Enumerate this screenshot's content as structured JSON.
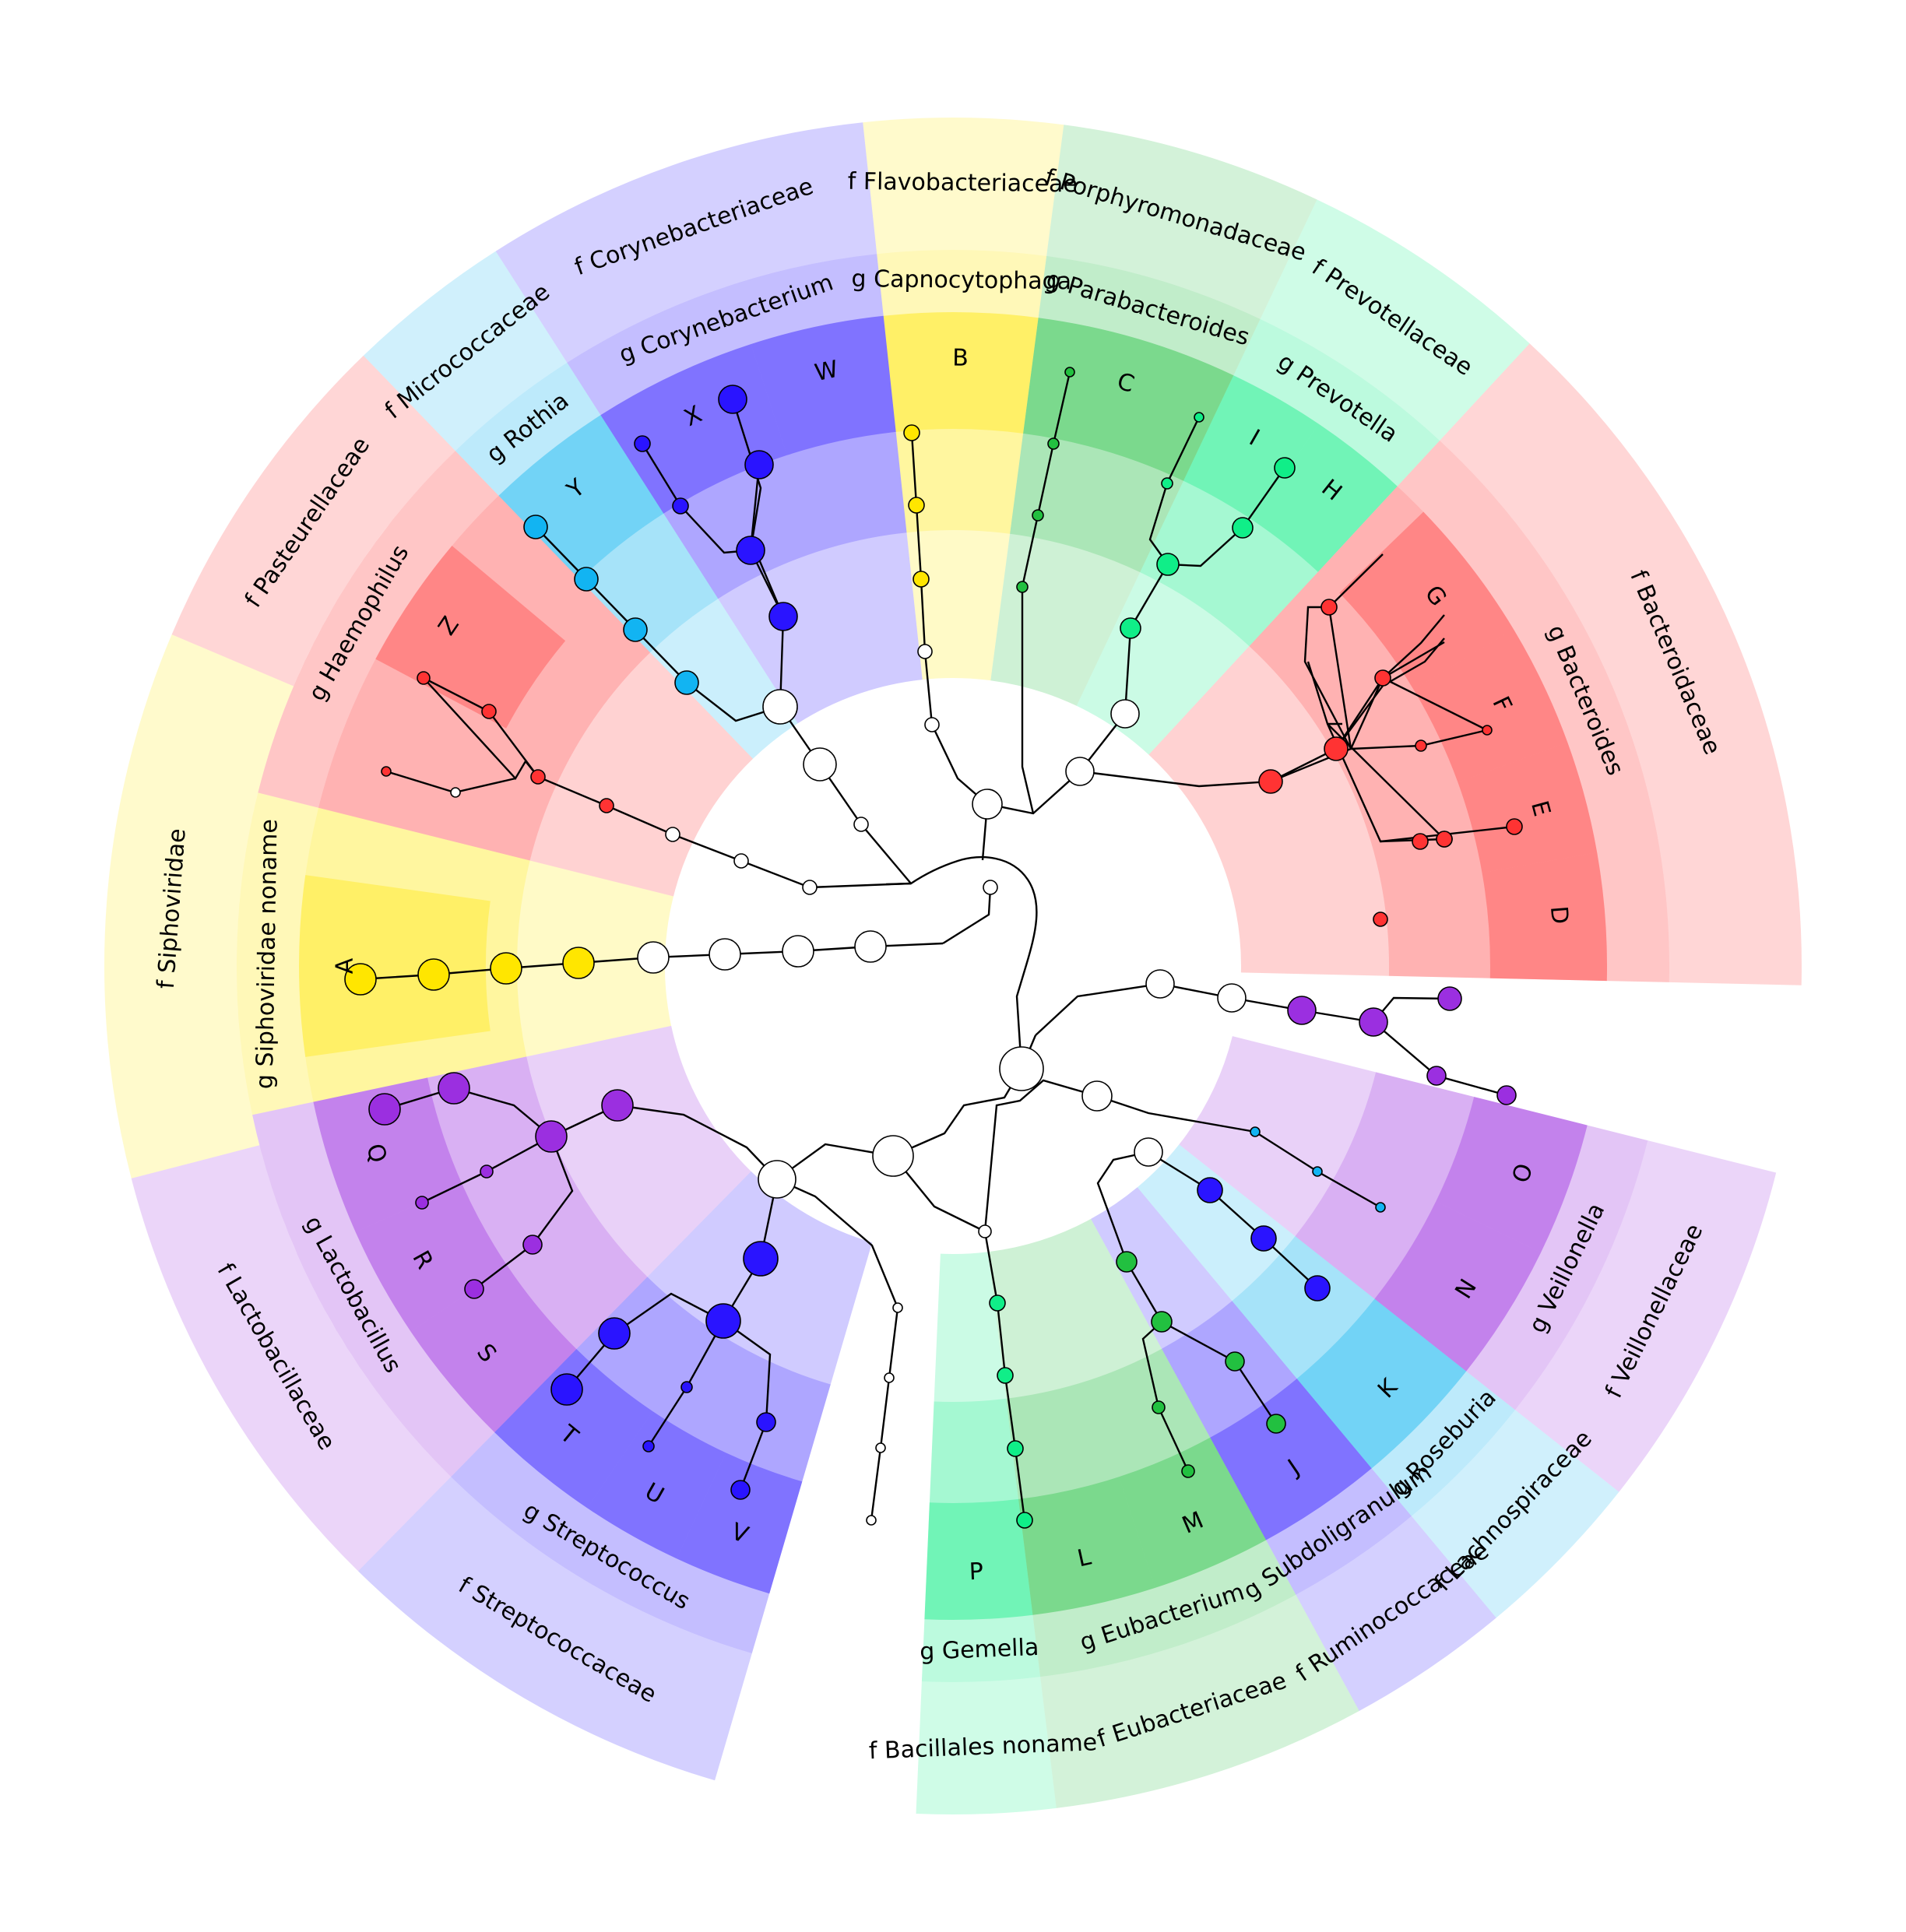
{
  "colors": {
    "red": "#ff3333",
    "yellow": "#ffe600",
    "purple": "#9b2fe0",
    "blue": "#2a14ff",
    "cyan": "#12b4f2",
    "green": "#22c040",
    "mint": "#10ee88",
    "internal": "#ffffff"
  },
  "families": [
    {
      "id": "bacteroidaceae",
      "label": "f  Bacteroidaceae",
      "color": "red"
    },
    {
      "id": "prevotellaceae",
      "label": "f  Prevotellaceae",
      "color": "mint"
    },
    {
      "id": "porphyromonadaceae",
      "label": "f  Porphyromonadaceae",
      "color": "green"
    },
    {
      "id": "flavobacteriaceae",
      "label": "f  Flavobacteriaceae",
      "color": "yellow"
    },
    {
      "id": "corynebacteriaceae",
      "label": "f  Corynebacteriaceae",
      "color": "blue"
    },
    {
      "id": "micrococcaceae",
      "label": "f  Micrococcaceae",
      "color": "cyan"
    },
    {
      "id": "pasteurellaceae",
      "label": "f  Pasteurellaceae",
      "color": "red"
    },
    {
      "id": "siphoviridae",
      "label": "f  Siphoviridae",
      "color": "yellow"
    },
    {
      "id": "lactobacillaceae",
      "label": "f  Lactobacillaceae",
      "color": "purple"
    },
    {
      "id": "streptococcaceae",
      "label": "f  Streptococcaceae",
      "color": "blue"
    },
    {
      "id": "bacillales",
      "label": "f  Bacillales noname",
      "color": "mint"
    },
    {
      "id": "eubacteriaceae",
      "label": "f  Eubacteriaceae",
      "color": "green"
    },
    {
      "id": "ruminococcaceae",
      "label": "f  Ruminococcaceae",
      "color": "blue"
    },
    {
      "id": "lachnospiraceae",
      "label": "f  Lachnospiraceae",
      "color": "cyan"
    },
    {
      "id": "veillonellaceae",
      "label": "f  Veillonellaceae",
      "color": "purple"
    }
  ],
  "genera": [
    {
      "id": "bacteroides",
      "label": "g  Bacteroides",
      "color": "red"
    },
    {
      "id": "prevotella",
      "label": "g  Prevotella",
      "color": "mint"
    },
    {
      "id": "parabacteroides",
      "label": "g  Parabacteroides",
      "color": "green"
    },
    {
      "id": "capnocytophaga",
      "label": "g  Capnocytophaga",
      "color": "yellow"
    },
    {
      "id": "corynebacterium",
      "label": "g  Corynebacterium",
      "color": "blue"
    },
    {
      "id": "rothia",
      "label": "g  Rothia",
      "color": "cyan"
    },
    {
      "id": "haemophilus",
      "label": "g  Haemophilus",
      "color": "red"
    },
    {
      "id": "siphoviridae_noname",
      "label": "g  Siphoviridae noname",
      "color": "yellow"
    },
    {
      "id": "lactobacillus",
      "label": "g  Lactobacillus",
      "color": "purple"
    },
    {
      "id": "streptococcus",
      "label": "g  Streptococcus",
      "color": "blue"
    },
    {
      "id": "gemella",
      "label": "g  Gemella",
      "color": "mint"
    },
    {
      "id": "eubacterium",
      "label": "g  Eubacterium",
      "color": "green"
    },
    {
      "id": "subdoligranulum",
      "label": "g  Subdoligranulum",
      "color": "blue"
    },
    {
      "id": "roseburia",
      "label": "g  Roseburia",
      "color": "cyan"
    },
    {
      "id": "veillonella",
      "label": "g  Veillonella",
      "color": "purple"
    }
  ],
  "leaves": [
    {
      "id": "D",
      "label": "D",
      "color": "red"
    },
    {
      "id": "E",
      "label": "E",
      "color": "red"
    },
    {
      "id": "F",
      "label": "F",
      "color": "red"
    },
    {
      "id": "G",
      "label": "G",
      "color": "red"
    },
    {
      "id": "H",
      "label": "H",
      "color": "mint"
    },
    {
      "id": "I",
      "label": "I",
      "color": "mint"
    },
    {
      "id": "C",
      "label": "C",
      "color": "green"
    },
    {
      "id": "B",
      "label": "B",
      "color": "yellow"
    },
    {
      "id": "W",
      "label": "W",
      "color": "blue"
    },
    {
      "id": "X",
      "label": "X",
      "color": "blue"
    },
    {
      "id": "Y",
      "label": "Y",
      "color": "cyan"
    },
    {
      "id": "Z",
      "label": "Z",
      "color": "red"
    },
    {
      "id": "A",
      "label": "A",
      "color": "yellow"
    },
    {
      "id": "Q",
      "label": "Q",
      "color": "purple"
    },
    {
      "id": "R",
      "label": "R",
      "color": "purple"
    },
    {
      "id": "S",
      "label": "S",
      "color": "purple"
    },
    {
      "id": "T",
      "label": "T",
      "color": "blue"
    },
    {
      "id": "U",
      "label": "U",
      "color": "blue"
    },
    {
      "id": "V",
      "label": "V",
      "color": "blue"
    },
    {
      "id": "P",
      "label": "P",
      "color": "mint"
    },
    {
      "id": "L",
      "label": "L",
      "color": "green"
    },
    {
      "id": "M",
      "label": "M",
      "color": "green"
    },
    {
      "id": "J",
      "label": "J",
      "color": "blue"
    },
    {
      "id": "K",
      "label": "K",
      "color": "cyan"
    },
    {
      "id": "N",
      "label": "N",
      "color": "purple"
    },
    {
      "id": "O",
      "label": "O",
      "color": "purple"
    }
  ]
}
